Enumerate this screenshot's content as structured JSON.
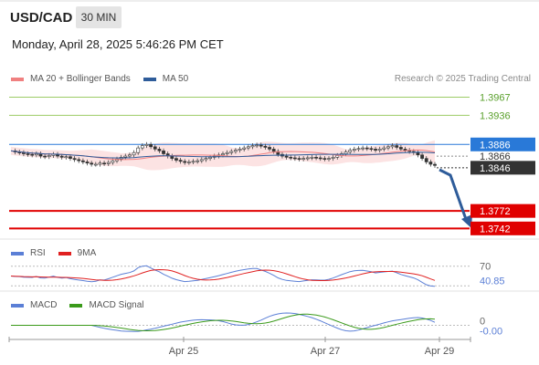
{
  "header": {
    "symbol": "USD/CAD",
    "timeframe": "30 MIN",
    "datetime": "Monday, April 28, 2025 5:46:26 PM CET"
  },
  "legends": {
    "price": [
      {
        "label": "MA 20 + Bollinger Bands",
        "color": "#f08080"
      },
      {
        "label": "MA 50",
        "color": "#2e5c9a"
      }
    ],
    "rsi": [
      {
        "label": "RSI",
        "color": "#5b7fd6"
      },
      {
        "label": "9MA",
        "color": "#e02020"
      }
    ],
    "macd": [
      {
        "label": "MACD",
        "color": "#5b7fd6"
      },
      {
        "label": "MACD Signal",
        "color": "#3a9a1a"
      }
    ]
  },
  "credit": "Research © 2025 Trading Central",
  "chart_data": {
    "type": "candlestick",
    "x_labels": [
      "Apr 25",
      "Apr 27",
      "Apr 29"
    ],
    "price_axis": {
      "min": 1.373,
      "max": 1.3985
    },
    "levels": [
      {
        "value": 1.3967,
        "label": "1.3967",
        "role": "resistance"
      },
      {
        "value": 1.3936,
        "label": "1.3936",
        "role": "resistance"
      },
      {
        "value": 1.3886,
        "label": "1.3886",
        "role": "pivot"
      },
      {
        "value": 1.3772,
        "label": "1.3772",
        "role": "support"
      },
      {
        "value": 1.3742,
        "label": "1.3742",
        "role": "support"
      }
    ],
    "last_price": {
      "value": 1.3846,
      "label": "1.3846"
    },
    "intermediate_level": {
      "value": 1.3866,
      "label": "1.3866"
    },
    "rsi": {
      "value": 40.85,
      "label": "40.85",
      "level_label": "70"
    },
    "macd": {
      "value": -0.0,
      "label": "-0.00",
      "zero_label": "0"
    },
    "closes": [
      1.3875,
      1.3873,
      1.3872,
      1.387,
      1.3869,
      1.3868,
      1.387,
      1.3866,
      1.3865,
      1.3867,
      1.3869,
      1.3866,
      1.3864,
      1.3865,
      1.3862,
      1.386,
      1.3858,
      1.3856,
      1.3854,
      1.3852,
      1.3852,
      1.3854,
      1.3853,
      1.3855,
      1.3858,
      1.3861,
      1.3864,
      1.3866,
      1.3868,
      1.3872,
      1.388,
      1.3884,
      1.3886,
      1.3882,
      1.3878,
      1.3875,
      1.387,
      1.3866,
      1.3862,
      1.3859,
      1.3857,
      1.3855,
      1.3856,
      1.3857,
      1.3858,
      1.386,
      1.3862,
      1.3864,
      1.3866,
      1.3868,
      1.387,
      1.3872,
      1.3874,
      1.3876,
      1.3878,
      1.388,
      1.3882,
      1.3884,
      1.3885,
      1.3883,
      1.3881,
      1.3878,
      1.3874,
      1.3869,
      1.3866,
      1.3864,
      1.3863,
      1.3862,
      1.3861,
      1.3862,
      1.3863,
      1.3864,
      1.3863,
      1.3862,
      1.3861,
      1.3862,
      1.3864,
      1.3867,
      1.387,
      1.3873,
      1.3876,
      1.3878,
      1.3879,
      1.388,
      1.3879,
      1.3878,
      1.3876,
      1.3878,
      1.388,
      1.3882,
      1.3884,
      1.3881,
      1.3878,
      1.3876,
      1.3874,
      1.3872,
      1.3868,
      1.3862,
      1.3856,
      1.3852,
      1.385
    ]
  }
}
